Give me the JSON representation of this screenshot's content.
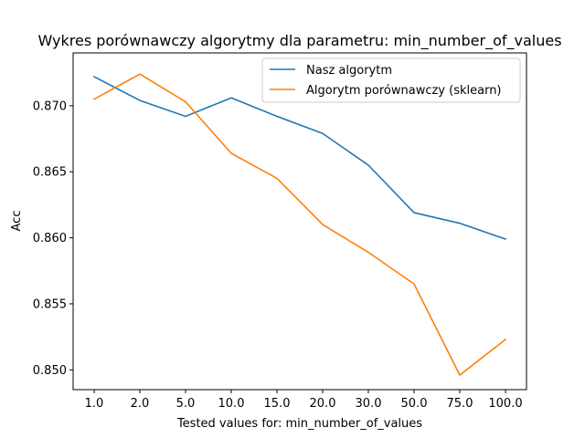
{
  "chart_data": {
    "type": "line",
    "title": "Wykres porównawczy algorytmy dla parametru: min_number_of_values",
    "xlabel": "Tested values for: min_number_of_values",
    "ylabel": "Acc",
    "categories": [
      "1.0",
      "2.0",
      "5.0",
      "10.0",
      "15.0",
      "20.0",
      "30.0",
      "50.0",
      "75.0",
      "100.0"
    ],
    "ylim": [
      0.8485,
      0.874
    ],
    "yticks": [
      "0.850",
      "0.855",
      "0.860",
      "0.865",
      "0.870"
    ],
    "ytick_values": [
      0.85,
      0.855,
      0.86,
      0.865,
      0.87
    ],
    "grid": false,
    "legend_position": "top-right",
    "series": [
      {
        "name": "Nasz algorytm",
        "color": "#1f77b4",
        "values": [
          0.8722,
          0.8704,
          0.8692,
          0.8706,
          0.8692,
          0.8679,
          0.8655,
          0.8619,
          0.8611,
          0.8599
        ]
      },
      {
        "name": "Algorytm porównawczy (sklearn)",
        "color": "#ff7f0e",
        "values": [
          0.8705,
          0.8724,
          0.8703,
          0.8664,
          0.8645,
          0.861,
          0.8589,
          0.8565,
          0.8496,
          0.8523
        ]
      }
    ]
  }
}
